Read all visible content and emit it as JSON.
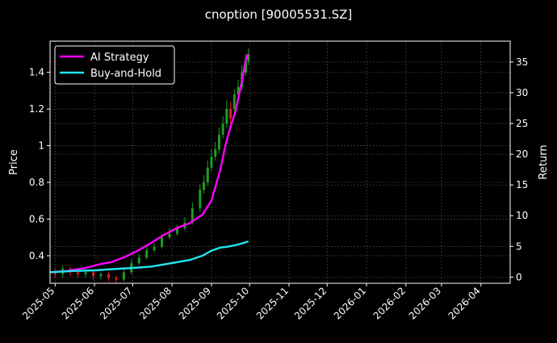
{
  "chart_data": {
    "type": "line",
    "title": "cnoption [90005531.SZ]",
    "xlabel": "",
    "ylabel_left": "Price",
    "ylabel_right": "Return",
    "x_ticks": [
      "2025-05",
      "2025-06",
      "2025-07",
      "2025-08",
      "2025-09",
      "2025-10",
      "2025-11",
      "2025-12",
      "2026-01",
      "2026-02",
      "2026-03",
      "2026-04"
    ],
    "x_range": [
      "2025-04-27",
      "2026-04-24"
    ],
    "y_left_ticks": [
      0.4,
      0.6,
      0.8,
      1.0,
      1.2,
      1.4
    ],
    "y_left_range": [
      0.25,
      1.57
    ],
    "y_right_ticks": [
      0,
      5,
      10,
      15,
      20,
      25,
      30,
      35
    ],
    "y_right_range": [
      -1,
      38.4
    ],
    "grid": true,
    "legend": {
      "placement": "top-left",
      "entries": [
        "AI Strategy",
        "Buy-and-Hold"
      ]
    },
    "colors": {
      "ai_strategy": "#ff00ff",
      "buy_and_hold": "#22e5ee",
      "candle_up": "#1f9e1f",
      "candle_down": "#e02020",
      "grid": "#555555"
    },
    "series": [
      {
        "name": "AI Strategy",
        "axis": "right",
        "x": [
          "2025-04-27",
          "2025-05-10",
          "2025-05-25",
          "2025-06-05",
          "2025-06-15",
          "2025-06-25",
          "2025-07-05",
          "2025-07-15",
          "2025-07-25",
          "2025-08-05",
          "2025-08-15",
          "2025-08-25",
          "2025-09-01",
          "2025-09-08",
          "2025-09-12",
          "2025-09-16",
          "2025-09-20",
          "2025-09-23",
          "2025-09-26",
          "2025-09-28",
          "2025-09-30"
        ],
        "values": [
          0.8,
          1.0,
          1.5,
          2.1,
          2.5,
          3.3,
          4.3,
          5.5,
          6.8,
          8.0,
          8.8,
          10.2,
          12.5,
          17.5,
          21.5,
          24.5,
          27.0,
          30.0,
          33.0,
          35.5,
          36.3
        ]
      },
      {
        "name": "Buy-and-Hold",
        "axis": "right",
        "x": [
          "2025-04-27",
          "2025-05-15",
          "2025-06-01",
          "2025-06-15",
          "2025-07-01",
          "2025-07-15",
          "2025-08-01",
          "2025-08-15",
          "2025-08-25",
          "2025-09-01",
          "2025-09-08",
          "2025-09-15",
          "2025-09-22",
          "2025-09-30"
        ],
        "values": [
          0.8,
          1.0,
          1.1,
          1.3,
          1.5,
          1.7,
          2.3,
          2.8,
          3.5,
          4.3,
          4.8,
          5.0,
          5.3,
          5.8
        ]
      }
    ],
    "candles": {
      "axis": "left",
      "x": [
        "2025-05-01",
        "2025-05-07",
        "2025-05-13",
        "2025-05-19",
        "2025-05-25",
        "2025-05-31",
        "2025-06-06",
        "2025-06-12",
        "2025-06-18",
        "2025-06-24",
        "2025-06-30",
        "2025-07-06",
        "2025-07-12",
        "2025-07-18",
        "2025-07-24",
        "2025-07-30",
        "2025-08-05",
        "2025-08-11",
        "2025-08-17",
        "2025-08-23",
        "2025-08-26",
        "2025-08-29",
        "2025-09-01",
        "2025-09-04",
        "2025-09-07",
        "2025-09-10",
        "2025-09-13",
        "2025-09-16",
        "2025-09-19",
        "2025-09-22",
        "2025-09-25",
        "2025-09-28",
        "2025-09-30"
      ],
      "open": [
        0.31,
        0.3,
        0.33,
        0.31,
        0.3,
        0.31,
        0.29,
        0.3,
        0.28,
        0.27,
        0.31,
        0.36,
        0.39,
        0.43,
        0.45,
        0.5,
        0.52,
        0.55,
        0.58,
        0.66,
        0.76,
        0.8,
        0.88,
        0.94,
        0.98,
        1.06,
        1.12,
        1.2,
        1.2,
        1.28,
        1.32,
        1.4,
        1.46
      ],
      "close": [
        0.3,
        0.33,
        0.31,
        0.3,
        0.31,
        0.29,
        0.3,
        0.28,
        0.27,
        0.31,
        0.36,
        0.39,
        0.43,
        0.45,
        0.5,
        0.52,
        0.55,
        0.58,
        0.66,
        0.76,
        0.8,
        0.88,
        0.94,
        0.98,
        1.06,
        1.12,
        1.2,
        1.15,
        1.28,
        1.32,
        1.4,
        1.46,
        1.5
      ],
      "high": [
        0.33,
        0.35,
        0.34,
        0.32,
        0.33,
        0.32,
        0.31,
        0.31,
        0.29,
        0.33,
        0.38,
        0.41,
        0.45,
        0.47,
        0.52,
        0.55,
        0.57,
        0.61,
        0.69,
        0.79,
        0.84,
        0.92,
        0.98,
        1.02,
        1.1,
        1.16,
        1.25,
        1.24,
        1.31,
        1.36,
        1.44,
        1.5,
        1.53
      ],
      "low": [
        0.28,
        0.28,
        0.29,
        0.28,
        0.28,
        0.27,
        0.27,
        0.26,
        0.25,
        0.26,
        0.3,
        0.35,
        0.38,
        0.42,
        0.44,
        0.49,
        0.51,
        0.54,
        0.57,
        0.64,
        0.74,
        0.78,
        0.86,
        0.92,
        0.96,
        1.04,
        1.1,
        1.12,
        1.18,
        1.26,
        1.3,
        1.38,
        1.44
      ]
    }
  }
}
